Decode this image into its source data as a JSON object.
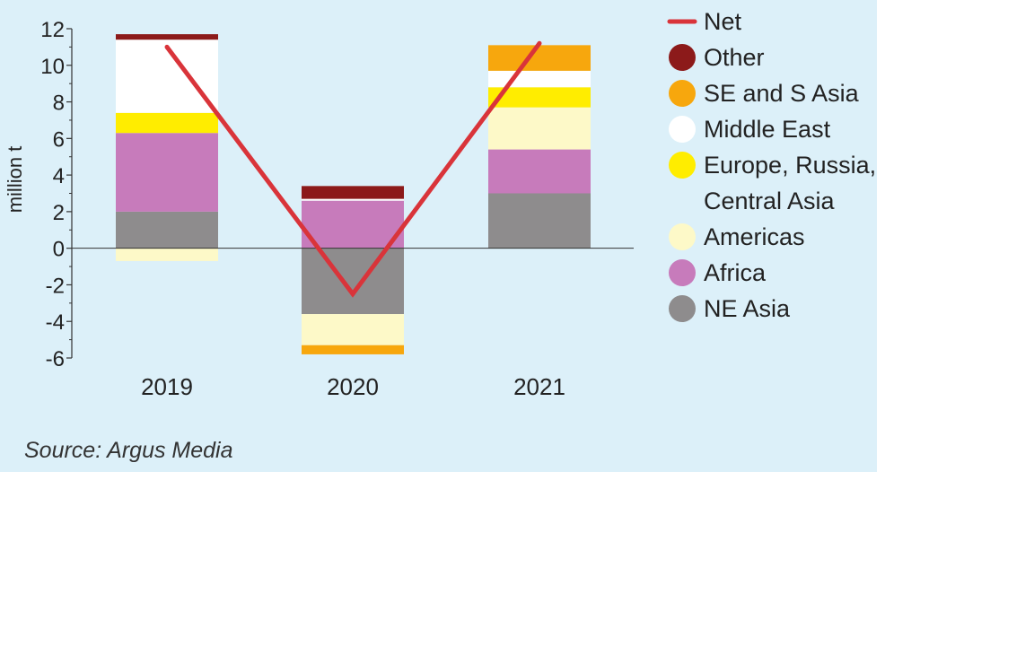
{
  "chart_data": {
    "type": "bar",
    "stacked": true,
    "ylabel": "million t",
    "ylim": [
      -6,
      12
    ],
    "yticks": [
      "12",
      "10",
      "8",
      "6",
      "4",
      "2",
      "0",
      "-2",
      "-4",
      "-6"
    ],
    "categories": [
      "2019",
      "2020",
      "2021"
    ],
    "series": [
      {
        "name": "NE Asia",
        "color": "#8e8c8d",
        "values": [
          2.0,
          -3.6,
          3.0
        ]
      },
      {
        "name": "Africa",
        "color": "#c77bbb",
        "values": [
          4.3,
          2.6,
          2.4
        ]
      },
      {
        "name": "Americas",
        "color": "#fdf9c8",
        "values": [
          -0.7,
          -1.7,
          2.3
        ]
      },
      {
        "name": "Europe, Russia, Central Asia",
        "color": "#ffed00",
        "values": [
          1.1,
          0.0,
          1.1
        ]
      },
      {
        "name": "Middle East",
        "color": "#ffffff",
        "values": [
          4.0,
          0.1,
          0.9
        ]
      },
      {
        "name": "SE and S Asia",
        "color": "#f7a70d",
        "values": [
          0.0,
          -0.5,
          1.4
        ]
      },
      {
        "name": "Other",
        "color": "#8c1a1a",
        "values": [
          0.3,
          0.7,
          0.0
        ]
      }
    ],
    "net": {
      "name": "Net",
      "color": "#d9343a",
      "values": [
        11.0,
        -2.5,
        11.2
      ]
    },
    "legend": [
      "Net",
      "Other",
      "SE and S Asia",
      "Middle East",
      "Europe, Russia,\nCentral Asia",
      "Americas",
      "Africa",
      "NE Asia"
    ],
    "legend_position": "right"
  },
  "source": "Source: Argus Media"
}
